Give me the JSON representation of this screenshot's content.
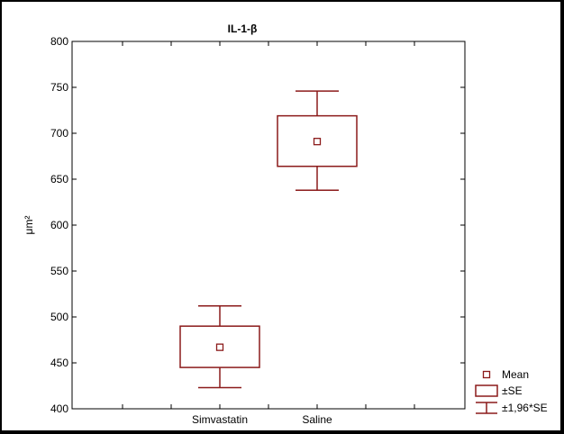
{
  "chart_data": {
    "type": "box",
    "title": "IL-1-β",
    "ylabel": "μm²",
    "xlabel": "",
    "ylim": [
      400,
      800
    ],
    "yticks": [
      400,
      450,
      500,
      550,
      600,
      650,
      700,
      750,
      800
    ],
    "grid": false,
    "legend_placement": "bottom-right",
    "color": "#8b1a1a",
    "categories": [
      "Simvastatin",
      "Saline"
    ],
    "series": [
      {
        "category": "Simvastatin",
        "mean": 467,
        "se_low": 445,
        "se_high": 490,
        "ci_low": 423,
        "ci_high": 512
      },
      {
        "category": "Saline",
        "mean": 691,
        "se_low": 664,
        "se_high": 719,
        "ci_low": 638,
        "ci_high": 746
      }
    ],
    "legend": [
      {
        "kind": "mean",
        "label": "Mean"
      },
      {
        "kind": "se",
        "label": "±SE"
      },
      {
        "kind": "ci",
        "label": "±1,96*SE"
      }
    ]
  }
}
